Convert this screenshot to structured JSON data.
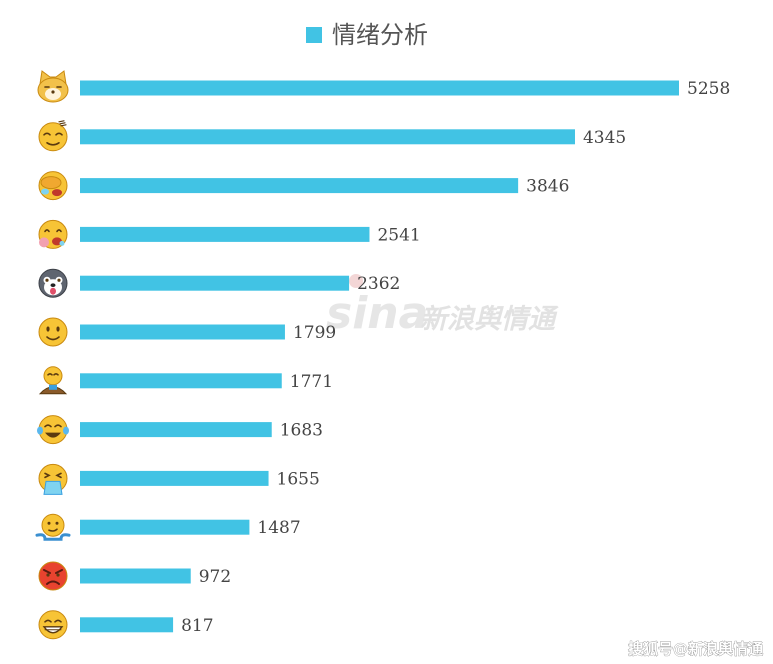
{
  "watermark": {
    "logo": "sina",
    "text": "新浪舆情通"
  },
  "credit": "搜狐号@新浪舆情通",
  "chart_data": {
    "type": "bar",
    "orientation": "horizontal",
    "title": "",
    "xlabel": "",
    "ylabel": "",
    "series": [
      {
        "name": "情绪分析",
        "color": "#41c3e4",
        "values": [
          5258,
          4345,
          3846,
          2541,
          2362,
          1799,
          1771,
          1683,
          1655,
          1487,
          972,
          817
        ]
      }
    ],
    "categories": [
      "doge-cat-emoji",
      "dizzy-emoji",
      "facepalm-cry-emoji",
      "drooling-emoji",
      "husky-emoji",
      "smile-emoji",
      "meditate-emoji",
      "laugh-cry-emoji",
      "vomit-emoji",
      "shrug-emoji",
      "angry-emoji",
      "grin-emoji"
    ],
    "xlim": [
      0,
      5258
    ],
    "grid": false,
    "legend": "top-center",
    "data_labels": true
  }
}
